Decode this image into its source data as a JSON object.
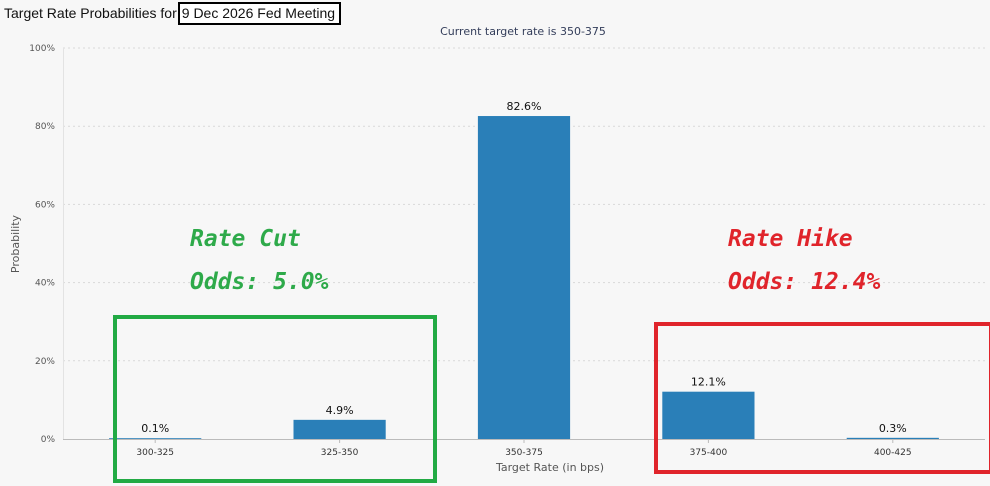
{
  "title_prefix": "Target Rate Probabilities for",
  "title_highlight": "9 Dec 2026 Fed Meeting",
  "colors": {
    "bar": "#2a7fb8",
    "grid": "#d9d9d9",
    "cut": "#22aa44",
    "hike": "#e0242b"
  },
  "annotations": {
    "cut": {
      "title": "Rate Cut",
      "odds": "Odds: 5.0%"
    },
    "hike": {
      "title": "Rate Hike",
      "odds": "Odds: 12.4%"
    }
  },
  "chart_data": {
    "type": "bar",
    "subtitle": "Current target rate is 350-375",
    "xlabel": "Target Rate (in bps)",
    "ylabel": "Probability",
    "categories": [
      "300-325",
      "325-350",
      "350-375",
      "375-400",
      "400-425"
    ],
    "values": [
      0.1,
      4.9,
      82.6,
      12.1,
      0.3
    ],
    "data_labels": [
      "0.1%",
      "4.9%",
      "82.6%",
      "12.1%",
      "0.3%"
    ],
    "ylim": [
      0,
      100
    ],
    "yticks": [
      0,
      20,
      40,
      60,
      80,
      100
    ],
    "ytick_labels": [
      "0%",
      "20%",
      "40%",
      "60%",
      "80%",
      "100%"
    ],
    "grid": true
  }
}
